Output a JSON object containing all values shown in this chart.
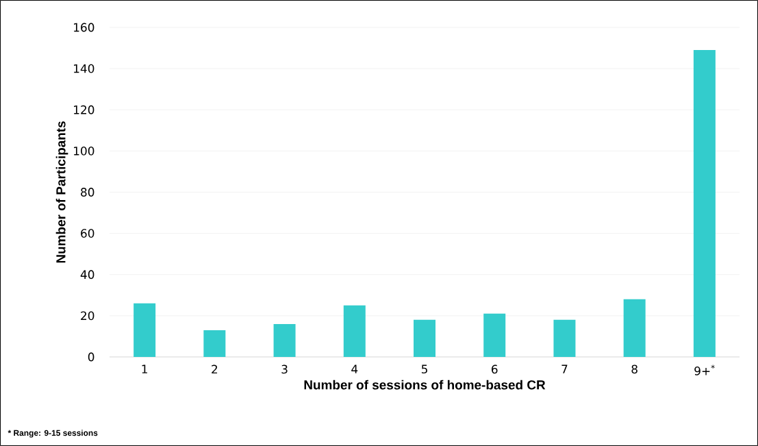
{
  "chart_data": {
    "type": "bar",
    "xlabel": "Number of sessions of home-based CR",
    "ylabel": "Number of Participants",
    "categories": [
      "1",
      "2",
      "3",
      "4",
      "5",
      "6",
      "7",
      "8",
      "9+$^{*}$"
    ],
    "values": [
      26,
      13,
      16,
      25,
      18,
      21,
      18,
      28,
      149
    ],
    "color": "#33cccc",
    "ylim": [
      0,
      160
    ],
    "yticks": [
      0,
      20,
      40,
      60,
      80,
      100,
      120,
      140,
      160
    ],
    "grid": "y",
    "annotations": [
      "* Range: 9-15 sessions"
    ]
  }
}
